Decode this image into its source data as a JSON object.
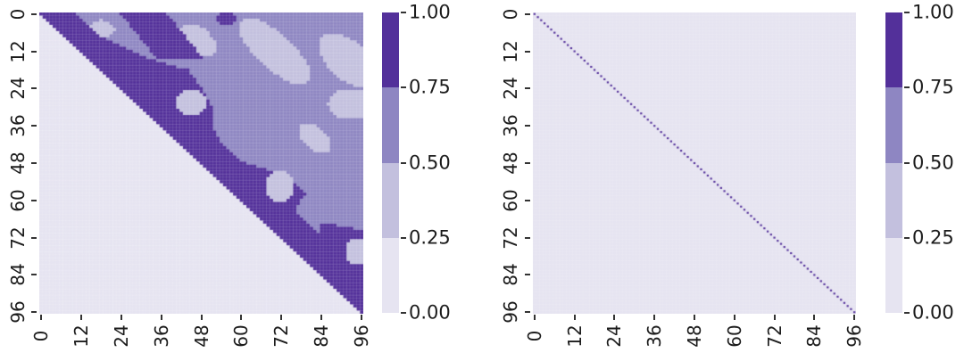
{
  "palette": {
    "band_colors_low_to_high": [
      "#e6e4f1",
      "#c3c0de",
      "#8e86c2",
      "#53309a"
    ],
    "cell_grid_line": "rgba(255,255,255,0.22)",
    "tick_mark_color": "#333333",
    "tick_label_color": "#1c1c1c",
    "background": "#ffffff"
  },
  "chart_data": [
    {
      "id": "left-heatmap",
      "type": "heatmap",
      "n": 97,
      "x_ticks": [
        0,
        12,
        24,
        36,
        48,
        60,
        72,
        84,
        96
      ],
      "y_ticks": [
        0,
        12,
        24,
        36,
        48,
        60,
        72,
        84,
        96
      ],
      "value_levels": [
        0.0,
        0.25,
        0.5,
        0.75,
        1.0
      ],
      "colorbar_tick_labels": [
        "1.00",
        "0.75",
        "0.50",
        "0.25",
        "0.00"
      ],
      "description": "Quantized (4-level) upper-triangular kernel/similarity matrix: lower triangle in 0-0.25 band; thick 0.75-1.0 band hugging the diagonal with occasional 0.25-0.5 holes; remaining upper triangle mostly 0.5-0.75 with diagonal 0.25-0.5 streaks and pockets; extra 0.75-1.0 stripes near top-left and bottom-right corners",
      "pattern": {
        "kind": "shapes",
        "lower_triangle_value": 0.12,
        "upper_base_value": 0.6,
        "dark_value": 0.88,
        "light_value": 0.38,
        "dark_band_width_by_row": [
          [
            0,
            10
          ],
          [
            8,
            11
          ],
          [
            14,
            17
          ],
          [
            18,
            26
          ],
          [
            24,
            24
          ],
          [
            30,
            21
          ],
          [
            36,
            15
          ],
          [
            42,
            12
          ],
          [
            48,
            13
          ],
          [
            52,
            21
          ],
          [
            58,
            21
          ],
          [
            63,
            13
          ],
          [
            70,
            12
          ],
          [
            80,
            12
          ],
          [
            88,
            11
          ],
          [
            96,
            9
          ]
        ],
        "light_ellipses": [
          [
            5,
            18,
            4,
            3,
            0
          ],
          [
            8.5,
            47,
            6.5,
            4,
            45
          ],
          [
            12,
            70,
            14,
            5.5,
            45
          ],
          [
            15,
            92,
            11,
            6,
            45
          ],
          [
            29,
            92.5,
            6.5,
            5,
            0
          ],
          [
            40,
            82,
            6,
            3.5,
            45
          ]
        ],
        "dark_ellipses": [
          [
            1.5,
            55.5,
            3.5,
            2,
            0
          ]
        ],
        "dark_polygons": [
          [
            [
              0,
              24
            ],
            [
              0,
              38
            ],
            [
              15,
              49
            ],
            [
              15,
              35
            ]
          ],
          [
            [
              67,
              84
            ],
            [
              69.5,
              96.5
            ],
            [
              96.5,
              96.5
            ],
            [
              82,
              84
            ]
          ]
        ],
        "light_holes": [
          [
            28.5,
            45,
            4.5,
            4,
            0
          ],
          [
            55.5,
            71.5,
            4,
            5.5,
            0
          ],
          [
            76.5,
            95.5,
            4.5,
            4.5,
            0
          ]
        ]
      }
    },
    {
      "id": "right-heatmap",
      "type": "heatmap",
      "n": 97,
      "x_ticks": [
        0,
        12,
        24,
        36,
        48,
        60,
        72,
        84,
        96
      ],
      "y_ticks": [
        0,
        12,
        24,
        36,
        48,
        60,
        72,
        84,
        96
      ],
      "value_levels": [
        0.0,
        0.25,
        0.5,
        0.75,
        1.0
      ],
      "colorbar_tick_labels": [
        "1.00",
        "0.75",
        "0.50",
        "0.25",
        "0.00"
      ],
      "description": "Identity matrix: value 1.0 on the main diagonal, ~0 elsewhere",
      "pattern": {
        "kind": "identity",
        "diagonal_value": 1.0,
        "off_diagonal_value": 0.12,
        "diagonal_dot_scale": 0.6
      }
    }
  ]
}
